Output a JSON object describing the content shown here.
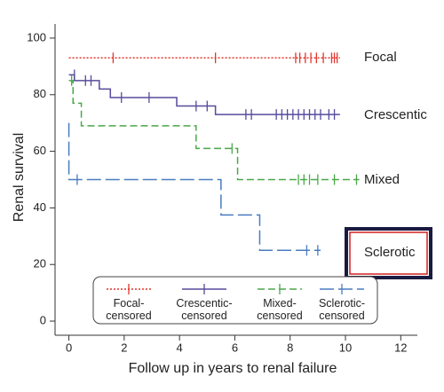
{
  "chart_data": {
    "type": "survival",
    "x_label": "Follow up in years to renal failure",
    "y_label": "Renal survival",
    "xlim": [
      -0.5,
      12.6
    ],
    "ylim": [
      -5,
      105
    ],
    "xticks": [
      0,
      2,
      4,
      6,
      8,
      10,
      12
    ],
    "yticks": [
      0,
      20,
      40,
      60,
      80,
      100
    ],
    "series": [
      {
        "name": "Focal",
        "censor_name": "Focal-censored",
        "color": "#e3342b",
        "line_style": "dotted",
        "x": [
          0,
          9.8
        ],
        "values": [
          93,
          93
        ],
        "censor_x": [
          1.6,
          5.3,
          8.2,
          8.35,
          8.55,
          8.75,
          8.95,
          9.2,
          9.5,
          9.6,
          9.7
        ],
        "censor_values": [
          93,
          93,
          93,
          93,
          93,
          93,
          93,
          93,
          93,
          93,
          93
        ]
      },
      {
        "name": "Crescentic",
        "censor_name": "Crescentic-censored",
        "color": "#564b9c",
        "line_style": "solid",
        "x": [
          0,
          0.2,
          0.2,
          1.1,
          1.1,
          1.5,
          1.5,
          3.9,
          3.9,
          5.3,
          5.3,
          9.8
        ],
        "values": [
          87,
          87,
          85,
          85,
          82,
          82,
          79,
          79,
          76,
          76,
          73,
          73
        ],
        "censor_x": [
          0.2,
          0.6,
          0.8,
          1.9,
          2.9,
          4.6,
          5.0,
          6.4,
          6.6,
          7.5,
          7.7,
          7.9,
          8.1,
          8.3,
          8.5,
          8.7,
          8.9,
          9.1,
          9.4,
          9.6
        ],
        "censor_values": [
          87,
          85,
          85,
          79,
          79,
          76,
          76,
          73,
          73,
          73,
          73,
          73,
          73,
          73,
          73,
          73,
          73,
          73,
          73,
          73
        ]
      },
      {
        "name": "Mixed",
        "censor_name": "Mixed-censored",
        "color": "#4aa84a",
        "line_style": "dashed",
        "x": [
          0,
          0.15,
          0.15,
          0.45,
          0.45,
          4.6,
          4.6,
          6.1,
          6.1,
          10.5
        ],
        "values": [
          85,
          85,
          77,
          77,
          69,
          69,
          61,
          61,
          50,
          50
        ],
        "censor_x": [
          0.1,
          5.9,
          8.3,
          8.5,
          8.7,
          9.0,
          9.6,
          10.4
        ],
        "censor_values": [
          85,
          61,
          50,
          50,
          50,
          50,
          50,
          50
        ]
      },
      {
        "name": "Sclerotic",
        "censor_name": "Sclerotic-censored",
        "color": "#4a7cc0",
        "line_style": "longdash",
        "x": [
          0,
          0,
          5.5,
          5.5,
          6.9,
          6.9,
          9.1
        ],
        "values": [
          70,
          50,
          50,
          37.5,
          37.5,
          25,
          25
        ],
        "censor_x": [
          0.3,
          8.6,
          9.0
        ],
        "censor_values": [
          50,
          25,
          25
        ]
      }
    ]
  }
}
